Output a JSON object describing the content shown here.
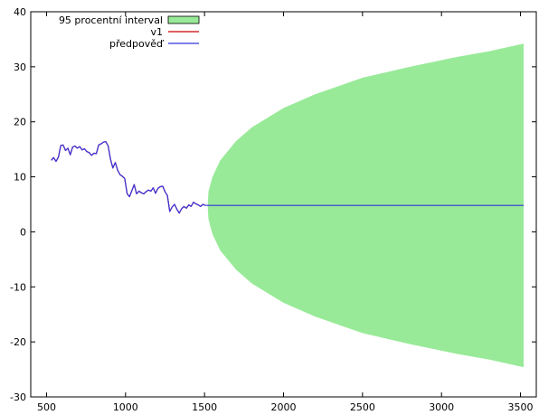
{
  "chart_data": {
    "type": "line",
    "title": "",
    "xlabel": "",
    "ylabel": "",
    "xlim": [
      400,
      3600
    ],
    "ylim": [
      -30,
      40
    ],
    "x_ticks": [
      500,
      1000,
      1500,
      2000,
      2500,
      3000,
      3500
    ],
    "y_ticks": [
      -30,
      -20,
      -10,
      0,
      10,
      20,
      30,
      40
    ],
    "grid": false,
    "legend": {
      "position": "top-left",
      "entries": [
        {
          "label": "95 procentní interval",
          "kind": "area",
          "color": "#98ea98"
        },
        {
          "label": "v1",
          "kind": "line",
          "color": "#cc0000"
        },
        {
          "label": "předpověď",
          "kind": "line",
          "color": "#3333dd"
        }
      ]
    },
    "series": [
      {
        "name": "v1",
        "kind": "line",
        "color": "#cc0000",
        "points": [
          [
            530,
            13.0
          ],
          [
            545,
            13.5
          ],
          [
            560,
            12.8
          ],
          [
            575,
            13.6
          ],
          [
            590,
            15.7
          ],
          [
            605,
            15.8
          ],
          [
            620,
            14.8
          ],
          [
            635,
            15.2
          ],
          [
            650,
            14.0
          ],
          [
            665,
            15.4
          ],
          [
            680,
            15.6
          ],
          [
            695,
            15.2
          ],
          [
            710,
            15.5
          ],
          [
            725,
            14.9
          ],
          [
            740,
            15.1
          ],
          [
            755,
            14.6
          ],
          [
            770,
            14.4
          ],
          [
            785,
            13.9
          ],
          [
            800,
            14.3
          ],
          [
            815,
            14.2
          ],
          [
            830,
            15.8
          ],
          [
            845,
            16.0
          ],
          [
            860,
            16.3
          ],
          [
            875,
            16.4
          ],
          [
            890,
            15.6
          ],
          [
            905,
            13.2
          ],
          [
            920,
            11.6
          ],
          [
            935,
            12.6
          ],
          [
            950,
            11.2
          ],
          [
            965,
            10.4
          ],
          [
            980,
            10.1
          ],
          [
            995,
            9.7
          ],
          [
            1010,
            6.9
          ],
          [
            1025,
            6.4
          ],
          [
            1040,
            7.5
          ],
          [
            1055,
            8.6
          ],
          [
            1070,
            6.9
          ],
          [
            1085,
            7.4
          ],
          [
            1100,
            7.1
          ],
          [
            1115,
            6.9
          ],
          [
            1130,
            7.3
          ],
          [
            1145,
            7.6
          ],
          [
            1160,
            7.4
          ],
          [
            1175,
            8.0
          ],
          [
            1190,
            7.0
          ],
          [
            1205,
            7.9
          ],
          [
            1220,
            8.2
          ],
          [
            1235,
            8.3
          ],
          [
            1250,
            7.3
          ],
          [
            1265,
            6.6
          ],
          [
            1280,
            3.7
          ],
          [
            1295,
            4.5
          ],
          [
            1310,
            5.0
          ],
          [
            1325,
            4.1
          ],
          [
            1340,
            3.4
          ],
          [
            1355,
            4.2
          ],
          [
            1370,
            4.6
          ],
          [
            1385,
            4.3
          ],
          [
            1400,
            4.9
          ],
          [
            1415,
            4.6
          ],
          [
            1430,
            5.4
          ],
          [
            1445,
            5.1
          ],
          [
            1460,
            4.9
          ],
          [
            1475,
            4.6
          ],
          [
            1490,
            5.0
          ],
          [
            1505,
            4.8
          ]
        ]
      },
      {
        "name": "předpověď",
        "kind": "line",
        "color": "#3333dd",
        "points": [
          [
            530,
            13.0
          ],
          [
            545,
            13.5
          ],
          [
            560,
            12.8
          ],
          [
            575,
            13.6
          ],
          [
            590,
            15.7
          ],
          [
            605,
            15.8
          ],
          [
            620,
            14.8
          ],
          [
            635,
            15.2
          ],
          [
            650,
            14.0
          ],
          [
            665,
            15.4
          ],
          [
            680,
            15.6
          ],
          [
            695,
            15.2
          ],
          [
            710,
            15.5
          ],
          [
            725,
            14.9
          ],
          [
            740,
            15.1
          ],
          [
            755,
            14.6
          ],
          [
            770,
            14.4
          ],
          [
            785,
            13.9
          ],
          [
            800,
            14.3
          ],
          [
            815,
            14.2
          ],
          [
            830,
            15.8
          ],
          [
            845,
            16.0
          ],
          [
            860,
            16.3
          ],
          [
            875,
            16.4
          ],
          [
            890,
            15.6
          ],
          [
            905,
            13.2
          ],
          [
            920,
            11.6
          ],
          [
            935,
            12.6
          ],
          [
            950,
            11.2
          ],
          [
            965,
            10.4
          ],
          [
            980,
            10.1
          ],
          [
            995,
            9.7
          ],
          [
            1010,
            6.9
          ],
          [
            1025,
            6.4
          ],
          [
            1040,
            7.5
          ],
          [
            1055,
            8.6
          ],
          [
            1070,
            6.9
          ],
          [
            1085,
            7.4
          ],
          [
            1100,
            7.1
          ],
          [
            1115,
            6.9
          ],
          [
            1130,
            7.3
          ],
          [
            1145,
            7.6
          ],
          [
            1160,
            7.4
          ],
          [
            1175,
            8.0
          ],
          [
            1190,
            7.0
          ],
          [
            1205,
            7.9
          ],
          [
            1220,
            8.2
          ],
          [
            1235,
            8.3
          ],
          [
            1250,
            7.3
          ],
          [
            1265,
            6.6
          ],
          [
            1280,
            3.7
          ],
          [
            1295,
            4.5
          ],
          [
            1310,
            5.0
          ],
          [
            1325,
            4.1
          ],
          [
            1340,
            3.4
          ],
          [
            1355,
            4.2
          ],
          [
            1370,
            4.6
          ],
          [
            1385,
            4.3
          ],
          [
            1400,
            4.9
          ],
          [
            1415,
            4.6
          ],
          [
            1430,
            5.4
          ],
          [
            1445,
            5.1
          ],
          [
            1460,
            4.9
          ],
          [
            1475,
            4.6
          ],
          [
            1490,
            5.0
          ],
          [
            1505,
            4.8
          ],
          [
            3520,
            4.8
          ]
        ]
      },
      {
        "name": "95 procentní interval",
        "kind": "area",
        "color": "#98ea98",
        "x": [
          1520,
          1525,
          1550,
          1600,
          1700,
          1800,
          2000,
          2200,
          2500,
          2800,
          3100,
          3300,
          3520
        ],
        "upper": [
          4.8,
          7.3,
          10.0,
          13.0,
          16.5,
          19.0,
          22.5,
          25.0,
          28.0,
          30.0,
          31.8,
          32.8,
          34.2
        ],
        "lower": [
          4.8,
          2.3,
          -0.4,
          -3.4,
          -6.9,
          -9.4,
          -12.9,
          -15.4,
          -18.4,
          -20.4,
          -22.2,
          -23.2,
          -24.6
        ]
      }
    ]
  }
}
